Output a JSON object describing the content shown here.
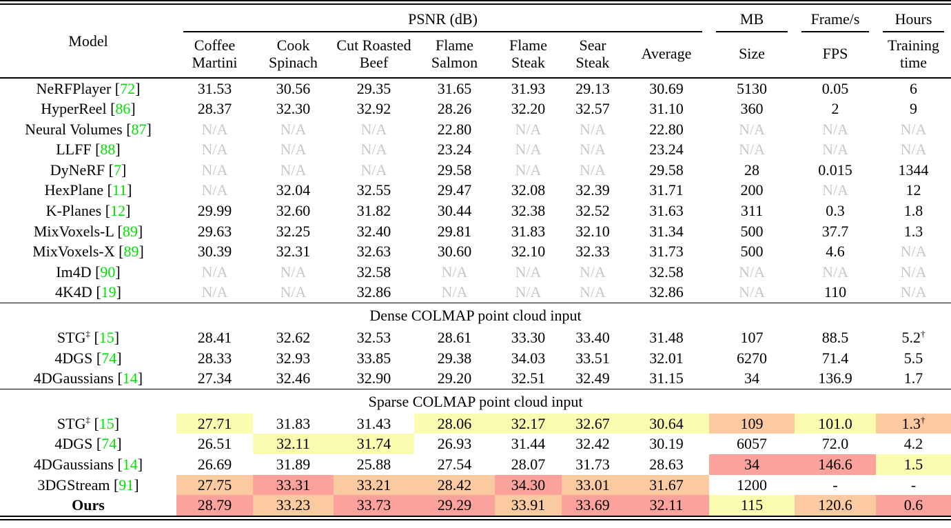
{
  "table": {
    "header": {
      "model_label": "Model",
      "groups": [
        {
          "label": "PSNR (dB)",
          "span": 7
        },
        {
          "label": "MB",
          "span": 1
        },
        {
          "label": "Frame/s",
          "span": 1
        },
        {
          "label": "Hours",
          "span": 1
        }
      ],
      "subcolumns": [
        [
          "Coffee",
          "Martini"
        ],
        [
          "Cook",
          "Spinach"
        ],
        [
          "Cut Roasted",
          "Beef"
        ],
        [
          "Flame",
          "Salmon"
        ],
        [
          "Flame",
          "Steak"
        ],
        [
          "Sear",
          "Steak"
        ],
        [
          "Average"
        ],
        [
          "Size"
        ],
        [
          "FPS"
        ],
        [
          "Training",
          "time"
        ]
      ]
    },
    "colors": {
      "red": "#fba29c",
      "orange": "#fccaa0",
      "yellow": "#fcfcb0",
      "na": "#c8c8c8",
      "cite": "#00e000"
    },
    "sections": [
      {
        "title": "",
        "rows": [
          {
            "model": "NeRFPlayer",
            "sup": "",
            "cite": "72",
            "bold": false,
            "values": [
              "31.53",
              "30.56",
              "29.35",
              "31.65",
              "31.93",
              "29.13",
              "30.69",
              "5130",
              "0.05",
              "6"
            ]
          },
          {
            "model": "HyperReel",
            "sup": "",
            "cite": "86",
            "bold": false,
            "values": [
              "28.37",
              "32.30",
              "32.92",
              "28.26",
              "32.20",
              "32.57",
              "31.10",
              "360",
              "2",
              "9"
            ]
          },
          {
            "model": "Neural Volumes",
            "sup": "",
            "cite": "87",
            "bold": false,
            "values": [
              "N/A",
              "N/A",
              "N/A",
              "22.80",
              "N/A",
              "N/A",
              "22.80",
              "N/A",
              "N/A",
              "N/A"
            ]
          },
          {
            "model": "LLFF",
            "sup": "",
            "cite": "88",
            "bold": false,
            "values": [
              "N/A",
              "N/A",
              "N/A",
              "23.24",
              "N/A",
              "N/A",
              "23.24",
              "N/A",
              "N/A",
              "N/A"
            ]
          },
          {
            "model": "DyNeRF",
            "sup": "",
            "cite": "7",
            "bold": false,
            "values": [
              "N/A",
              "N/A",
              "N/A",
              "29.58",
              "N/A",
              "N/A",
              "29.58",
              "28",
              "0.015",
              "1344"
            ]
          },
          {
            "model": "HexPlane",
            "sup": "",
            "cite": "11",
            "bold": false,
            "values": [
              "N/A",
              "32.04",
              "32.55",
              "29.47",
              "32.08",
              "32.39",
              "31.71",
              "200",
              "N/A",
              "12"
            ]
          },
          {
            "model": "K-Planes",
            "sup": "",
            "cite": "12",
            "bold": false,
            "values": [
              "29.99",
              "32.60",
              "31.82",
              "30.44",
              "32.38",
              "32.52",
              "31.63",
              "311",
              "0.3",
              "1.8"
            ]
          },
          {
            "model": "MixVoxels-L",
            "sup": "",
            "cite": "89",
            "bold": false,
            "values": [
              "29.63",
              "32.25",
              "32.40",
              "29.81",
              "31.83",
              "32.10",
              "31.34",
              "500",
              "37.7",
              "1.3"
            ]
          },
          {
            "model": "MixVoxels-X",
            "sup": "",
            "cite": "89",
            "bold": false,
            "values": [
              "30.39",
              "32.31",
              "32.63",
              "30.60",
              "32.10",
              "32.33",
              "31.73",
              "500",
              "4.6",
              "N/A"
            ]
          },
          {
            "model": "Im4D",
            "sup": "",
            "cite": "90",
            "bold": false,
            "values": [
              "N/A",
              "N/A",
              "32.58",
              "N/A",
              "N/A",
              "N/A",
              "32.58",
              "N/A",
              "N/A",
              "N/A"
            ]
          },
          {
            "model": "4K4D",
            "sup": "",
            "cite": "19",
            "bold": false,
            "values": [
              "N/A",
              "N/A",
              "32.86",
              "N/A",
              "N/A",
              "N/A",
              "32.86",
              "N/A",
              "110",
              "N/A"
            ]
          }
        ]
      },
      {
        "title": "Dense COLMAP point cloud input",
        "rows": [
          {
            "model": "STG",
            "sup": "‡",
            "cite": "15",
            "bold": false,
            "values": [
              "28.41",
              "32.62",
              "32.53",
              "28.61",
              "33.30",
              "33.40",
              "31.48",
              "107",
              "88.5",
              "5.2^†"
            ]
          },
          {
            "model": "4DGS",
            "sup": "",
            "cite": "74",
            "bold": false,
            "values": [
              "28.33",
              "32.93",
              "33.85",
              "29.38",
              "34.03",
              "33.51",
              "32.01",
              "6270",
              "71.4",
              "5.5"
            ]
          },
          {
            "model": "4DGaussians",
            "sup": "",
            "cite": "14",
            "bold": false,
            "values": [
              "27.34",
              "32.46",
              "32.90",
              "29.20",
              "32.51",
              "32.49",
              "31.15",
              "34",
              "136.9",
              "1.7"
            ]
          }
        ]
      },
      {
        "title": "Sparse COLMAP point cloud input",
        "rows": [
          {
            "model": "STG",
            "sup": "‡",
            "cite": "15",
            "bold": false,
            "values": [
              "27.71",
              "31.83",
              "31.43",
              "28.06",
              "32.17",
              "32.67",
              "30.64",
              "109",
              "101.0",
              "1.3^†"
            ],
            "hl": [
              "yellow",
              "",
              "",
              "yellow",
              "yellow",
              "yellow",
              "yellow",
              "orange",
              "yellow",
              "orange"
            ]
          },
          {
            "model": "4DGS",
            "sup": "",
            "cite": "74",
            "bold": false,
            "values": [
              "26.51",
              "32.11",
              "31.74",
              "26.93",
              "31.44",
              "32.42",
              "30.19",
              "6057",
              "72.0",
              "4.2"
            ],
            "hl": [
              "",
              "yellow",
              "yellow",
              "",
              "",
              "",
              "",
              "",
              "",
              ""
            ]
          },
          {
            "model": "4DGaussians",
            "sup": "",
            "cite": "14",
            "bold": false,
            "values": [
              "26.69",
              "31.89",
              "25.88",
              "27.54",
              "28.07",
              "31.73",
              "28.63",
              "34",
              "146.6",
              "1.5"
            ],
            "hl": [
              "",
              "",
              "",
              "",
              "",
              "",
              "",
              "red",
              "red",
              "yellow"
            ]
          },
          {
            "model": "3DGStream",
            "sup": "",
            "cite": "91",
            "bold": false,
            "values": [
              "27.75",
              "33.31",
              "33.21",
              "28.42",
              "34.30",
              "33.01",
              "31.67",
              "1200",
              "-",
              "-"
            ],
            "hl": [
              "orange",
              "red",
              "orange",
              "orange",
              "red",
              "orange",
              "orange",
              "",
              "",
              ""
            ]
          },
          {
            "model": "Ours",
            "sup": "",
            "cite": "",
            "bold": true,
            "values": [
              "28.79",
              "33.23",
              "33.73",
              "29.29",
              "33.91",
              "33.69",
              "32.11",
              "115",
              "120.6",
              "0.6"
            ],
            "hl": [
              "red",
              "orange",
              "red",
              "red",
              "orange",
              "red",
              "red",
              "yellow",
              "orange",
              "red"
            ]
          }
        ]
      }
    ]
  }
}
